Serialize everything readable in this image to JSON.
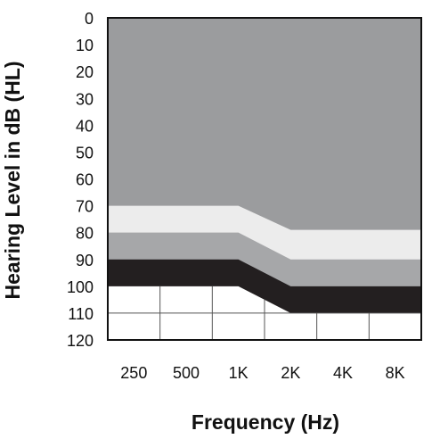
{
  "chart_data": {
    "type": "area",
    "xlabel": "Frequency (Hz)",
    "ylabel": "Hearing Level in dB (HL)",
    "x_categories": [
      "250",
      "500",
      "1K",
      "2K",
      "4K",
      "8K"
    ],
    "y_ticks": [
      "0",
      "10",
      "20",
      "30",
      "40",
      "50",
      "60",
      "70",
      "80",
      "90",
      "100",
      "110",
      "120"
    ],
    "ylim": [
      0,
      120
    ],
    "y_inverted": true,
    "grid": true,
    "bands": [
      {
        "color": "#9b9c9e",
        "lower_db": [
          70,
          70,
          70,
          79,
          79,
          79
        ]
      },
      {
        "color": "#ececec",
        "lower_db": [
          80,
          80,
          80,
          90,
          90,
          90
        ]
      },
      {
        "color": "#a6a7a9",
        "lower_db": [
          90,
          90,
          90,
          100,
          100,
          100
        ]
      },
      {
        "color": "#231f20",
        "lower_db": [
          100,
          100,
          100,
          110,
          110,
          110
        ]
      }
    ],
    "band_x_stops": [
      0,
      1,
      2,
      3,
      4,
      5
    ]
  }
}
